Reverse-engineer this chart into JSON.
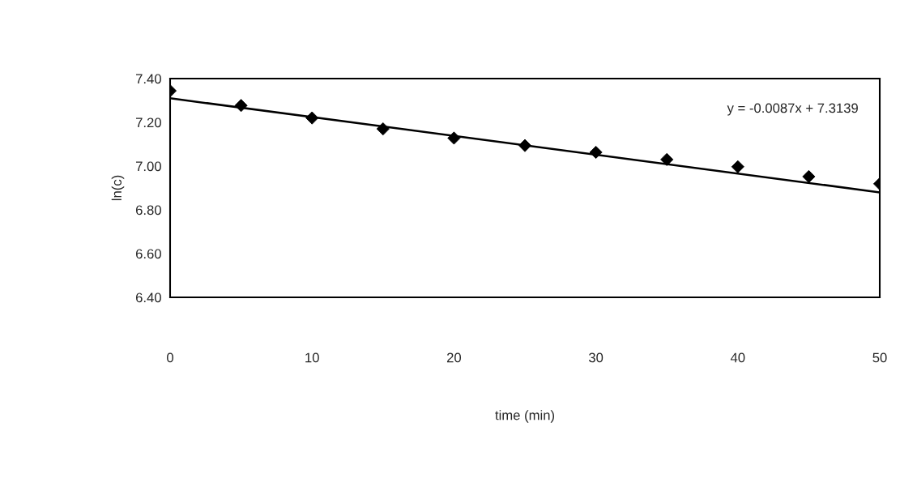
{
  "chart_data": {
    "type": "scatter",
    "xlabel": "time (min)",
    "ylabel": "ln(c)",
    "xlim": [
      0,
      50
    ],
    "xticks": [
      0,
      10,
      20,
      30,
      40,
      50
    ],
    "ylim": [
      6.4,
      7.4
    ],
    "yticks": [
      {
        "value": 6.4,
        "label": "6.40"
      },
      {
        "value": 6.6,
        "label": "6.60"
      },
      {
        "value": 6.8,
        "label": "6.80"
      },
      {
        "value": 7.0,
        "label": "7.00"
      },
      {
        "value": 7.2,
        "label": "7.20"
      },
      {
        "value": 7.4,
        "label": "7.40"
      }
    ],
    "grid": false,
    "legend": false,
    "x": [
      0,
      5,
      10,
      15,
      20,
      25,
      30,
      35,
      40,
      45,
      50
    ],
    "series": [
      {
        "color": "#000000",
        "marker": "diamond",
        "values": [
          7.344,
          7.277,
          7.22,
          7.17,
          7.128,
          7.094,
          7.063,
          7.03,
          6.997,
          6.952,
          6.919
        ]
      },
      {
        "type": "line",
        "color": "#000000",
        "marker": "none",
        "line_style": "solid",
        "x": [
          0,
          50
        ],
        "values": [
          7.31,
          6.88
        ]
      }
    ],
    "annotations": [
      "y = -0.0087x + 7.3139"
    ]
  }
}
